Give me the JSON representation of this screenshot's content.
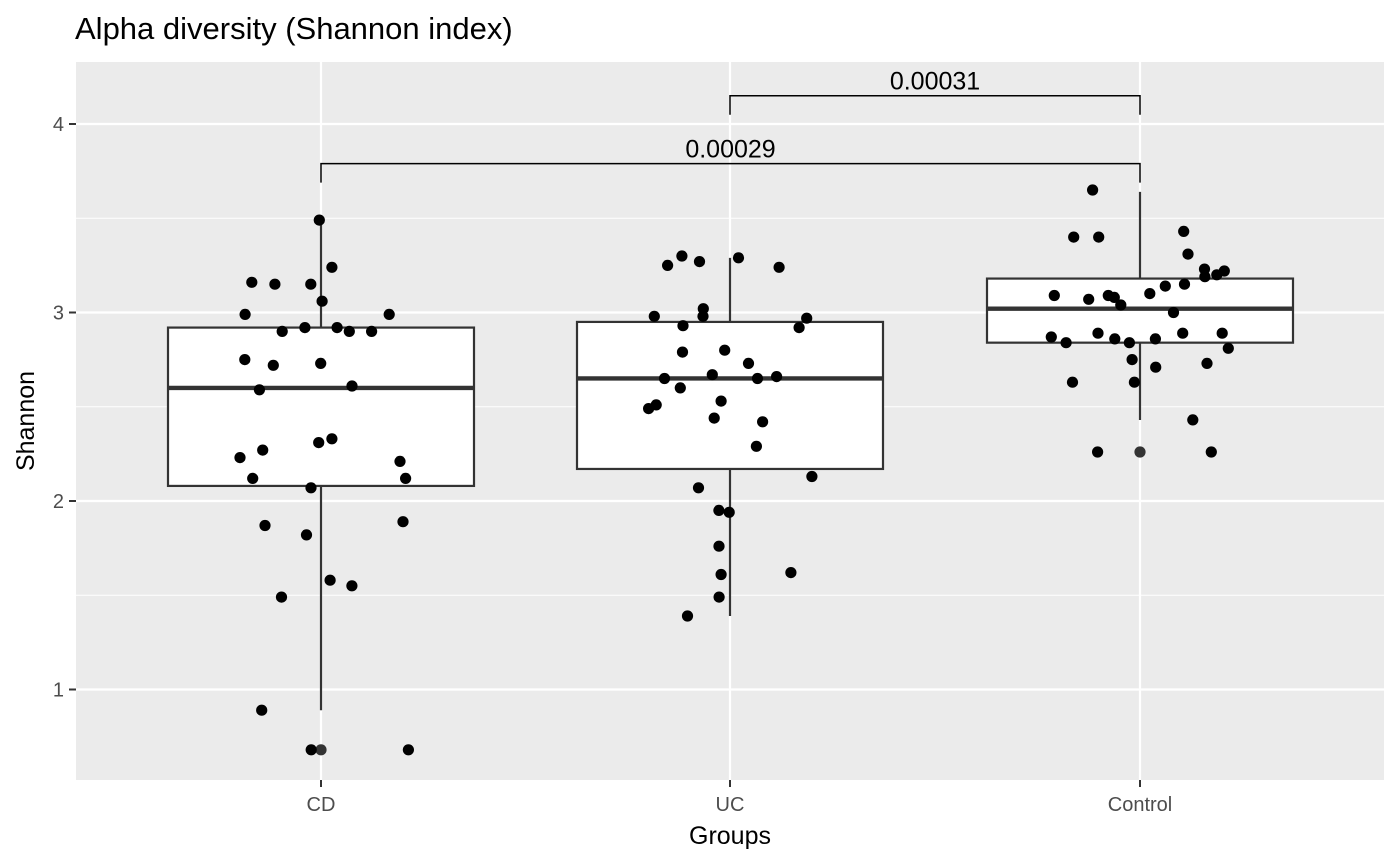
{
  "chart_data": {
    "type": "boxplot",
    "title": "Alpha diversity (Shannon index)",
    "xlabel": "Groups",
    "ylabel": "Shannon",
    "ylim": [
      0.5,
      4.35
    ],
    "yticks": [
      1,
      2,
      3,
      4
    ],
    "grid": true,
    "categories": [
      "CD",
      "UC",
      "Control"
    ],
    "boxes": [
      {
        "category": "CD",
        "min": 0.89,
        "q1": 2.08,
        "median": 2.6,
        "q3": 2.92,
        "max": 3.49,
        "outliers": [
          0.68
        ]
      },
      {
        "category": "UC",
        "min": 1.39,
        "q1": 2.17,
        "median": 2.65,
        "q3": 2.95,
        "max": 3.29,
        "outliers": []
      },
      {
        "category": "Control",
        "min": 2.43,
        "q1": 2.84,
        "median": 3.02,
        "q3": 3.18,
        "max": 3.64,
        "outliers": [
          2.26
        ]
      }
    ],
    "points": [
      {
        "category": "CD",
        "values": [
          3.49,
          3.24,
          3.16,
          3.15,
          3.15,
          3.06,
          2.99,
          2.99,
          2.92,
          2.92,
          2.9,
          2.9,
          2.9,
          2.75,
          2.73,
          2.72,
          2.61,
          2.59,
          2.33,
          2.31,
          2.27,
          2.23,
          2.21,
          2.12,
          2.12,
          2.07,
          1.89,
          1.87,
          1.82,
          1.58,
          1.55,
          1.49,
          0.89,
          0.68,
          0.68
        ]
      },
      {
        "category": "UC",
        "values": [
          3.3,
          3.29,
          3.27,
          3.25,
          3.24,
          3.02,
          2.98,
          2.98,
          2.97,
          2.93,
          2.92,
          2.8,
          2.79,
          2.73,
          2.67,
          2.66,
          2.65,
          2.65,
          2.6,
          2.53,
          2.51,
          2.49,
          2.44,
          2.42,
          2.29,
          2.13,
          2.07,
          1.95,
          1.94,
          1.76,
          1.62,
          1.61,
          1.49,
          1.39
        ]
      },
      {
        "category": "Control",
        "values": [
          3.65,
          3.43,
          3.4,
          3.4,
          3.31,
          3.23,
          3.22,
          3.2,
          3.19,
          3.15,
          3.14,
          3.1,
          3.09,
          3.09,
          3.08,
          3.07,
          3.04,
          3.0,
          2.89,
          2.89,
          2.89,
          2.87,
          2.86,
          2.86,
          2.84,
          2.84,
          2.81,
          2.75,
          2.73,
          2.71,
          2.63,
          2.63,
          2.43,
          2.26,
          2.26
        ]
      }
    ],
    "comparisons": [
      {
        "from": "UC",
        "to": "Control",
        "label": "0.00031",
        "y": 4.15
      },
      {
        "from": "CD",
        "to": "Control",
        "label": "0.00029",
        "y": 3.79
      }
    ]
  }
}
